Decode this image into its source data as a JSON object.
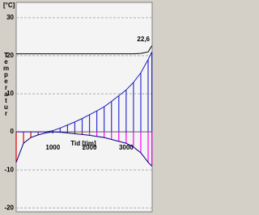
{
  "chart_data": {
    "type": "line",
    "y_unit": "[°C]",
    "ylabel": "Temperatur",
    "xlabel": "Tid [tim]",
    "annotation": "22,6",
    "x": [
      0,
      200,
      400,
      600,
      800,
      1000,
      1200,
      1400,
      1600,
      1800,
      2000,
      2200,
      2400,
      2600,
      2800,
      3000,
      3200,
      3400,
      3600,
      3700
    ],
    "series": [
      {
        "color": "#000000",
        "values": [
          20.5,
          20.5,
          20.5,
          20.5,
          20.5,
          20.5,
          20.5,
          20.5,
          20.5,
          20.5,
          20.5,
          20.5,
          20.5,
          20.5,
          20.5,
          20.5,
          20.5,
          20.6,
          21,
          22.6
        ]
      },
      {
        "color": "#2020c0",
        "values": [
          0,
          0,
          0,
          0,
          0,
          0.3,
          1,
          1.8,
          2.6,
          3.5,
          4.5,
          5.5,
          6.6,
          8,
          9.5,
          11,
          13,
          15.5,
          19,
          21
        ]
      },
      {
        "color": "#000080",
        "values": [
          -8,
          -3,
          -1.5,
          -0.8,
          -0.3,
          0,
          -0.1,
          -0.3,
          -0.5,
          -0.7,
          -0.9,
          -1.2,
          -1.5,
          -2,
          -2.5,
          -3,
          -4,
          -5.5,
          -8,
          -9
        ]
      }
    ],
    "neg_colors": [
      "#e00000",
      "#ff00ff"
    ],
    "xlim": [
      0,
      3710
    ],
    "ylim": [
      -21,
      34
    ],
    "xticks": [
      1000,
      2000,
      3000
    ],
    "yticks": [
      30,
      20,
      10,
      0,
      -10,
      -20
    ],
    "grid": true
  }
}
